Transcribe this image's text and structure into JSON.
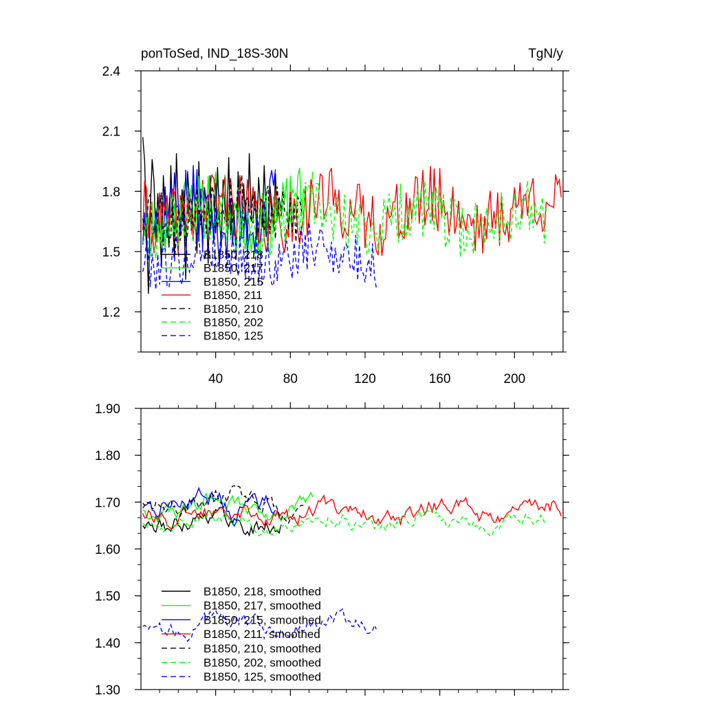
{
  "chart_data": [
    {
      "type": "line",
      "title": "ponToSed, IND_18S-30N",
      "units": "TgN/y",
      "xlim": [
        0,
        226
      ],
      "ylim": [
        1.0,
        2.4
      ],
      "xticks": [
        40,
        80,
        120,
        160,
        200
      ],
      "yticks": [
        1.2,
        1.5,
        1.8,
        2.1,
        2.4
      ],
      "grid": false,
      "legend_position": "lower-left",
      "series": [
        {
          "name": "B1850, 218",
          "color": "#000000",
          "dash": "solid",
          "length": 75,
          "mean": 1.68,
          "amp": 0.19,
          "seed": 11,
          "values": [
            2.07,
            1.95,
            1.6,
            1.29,
            1.71,
            1.96,
            1.85,
            1.55,
            1.79,
            1.62,
            1.42,
            1.88,
            1.68,
            1.74,
            1.52,
            1.93,
            1.64,
            1.47,
            1.99,
            1.72,
            1.58,
            1.81,
            1.66,
            1.36,
            1.9,
            1.75,
            1.61,
            1.84,
            1.7,
            1.49,
            1.95,
            1.67,
            1.56,
            1.82,
            1.73,
            1.44,
            1.88,
            1.64,
            1.78,
            1.59,
            1.92,
            1.69,
            1.52,
            1.86,
            1.71,
            1.63,
            1.97,
            1.58,
            1.76,
            1.68,
            1.46,
            1.9,
            1.73,
            1.61,
            1.84,
            1.66,
            1.55,
            1.99,
            1.7,
            1.64,
            1.8,
            1.57,
            1.87,
            1.72,
            1.62,
            1.93,
            1.68,
            1.5,
            1.83,
            1.74,
            1.6,
            1.89,
            1.65,
            1.77,
            1.7
          ]
        },
        {
          "name": "B1850, 217",
          "color": "#00ff00",
          "dash": "solid",
          "length": 92,
          "mean": 1.7,
          "amp": 0.17,
          "seed": 23
        },
        {
          "name": "B1850, 215",
          "color": "#0000ff",
          "dash": "solid",
          "length": 72,
          "mean": 1.68,
          "amp": 0.2,
          "seed": 37
        },
        {
          "name": "B1850, 211",
          "color": "#ff0000",
          "dash": "solid",
          "length": 225,
          "mean": 1.7,
          "amp": 0.17,
          "seed": 41
        },
        {
          "name": "B1850, 210",
          "color": "#000000",
          "dash": "dashed",
          "length": 87,
          "mean": 1.72,
          "amp": 0.16,
          "seed": 53
        },
        {
          "name": "B1850, 202",
          "color": "#00ff00",
          "dash": "dashed",
          "length": 217,
          "mean": 1.66,
          "amp": 0.15,
          "seed": 67
        },
        {
          "name": "B1850, 125",
          "color": "#0000ff",
          "dash": "dashed",
          "length": 126,
          "mean": 1.48,
          "amp": 0.13,
          "seed": 79
        }
      ]
    },
    {
      "type": "line",
      "title": "",
      "units": "",
      "xlim": [
        0,
        226
      ],
      "ylim": [
        1.3,
        1.9
      ],
      "xticks": [
        40,
        80,
        120,
        160,
        200
      ],
      "xticks_labeled": false,
      "yticks": [
        1.3,
        1.4,
        1.5,
        1.6,
        1.7,
        1.8,
        1.9
      ],
      "ytick_labels": [
        "1.30",
        "1.40",
        "1.50",
        "1.60",
        "1.70",
        "1.80",
        "1.90"
      ],
      "grid": false,
      "legend_position": "lower-left",
      "series": [
        {
          "name": "B1850, 218, smoothed",
          "color": "#000000",
          "dash": "solid",
          "length": 75,
          "mean": 1.66,
          "amp": 0.05,
          "seed": 111
        },
        {
          "name": "B1850, 217, smoothed",
          "color": "#00ff00",
          "dash": "solid",
          "length": 92,
          "mean": 1.69,
          "amp": 0.045,
          "seed": 123
        },
        {
          "name": "B1850, 215, smoothed",
          "color": "#0000ff",
          "dash": "solid",
          "length": 72,
          "mean": 1.7,
          "amp": 0.06,
          "seed": 137
        },
        {
          "name": "B1850, 211, smoothed",
          "color": "#ff0000",
          "dash": "solid",
          "length": 225,
          "mean": 1.68,
          "amp": 0.05,
          "seed": 141
        },
        {
          "name": "B1850, 210, smoothed",
          "color": "#000000",
          "dash": "dashed",
          "length": 87,
          "mean": 1.7,
          "amp": 0.05,
          "seed": 153
        },
        {
          "name": "B1850, 202, smoothed",
          "color": "#00ff00",
          "dash": "dashed",
          "length": 217,
          "mean": 1.66,
          "amp": 0.04,
          "seed": 167
        },
        {
          "name": "B1850, 125, smoothed",
          "color": "#0000ff",
          "dash": "dashed",
          "length": 126,
          "mean": 1.44,
          "amp": 0.045,
          "seed": 179
        }
      ]
    }
  ]
}
